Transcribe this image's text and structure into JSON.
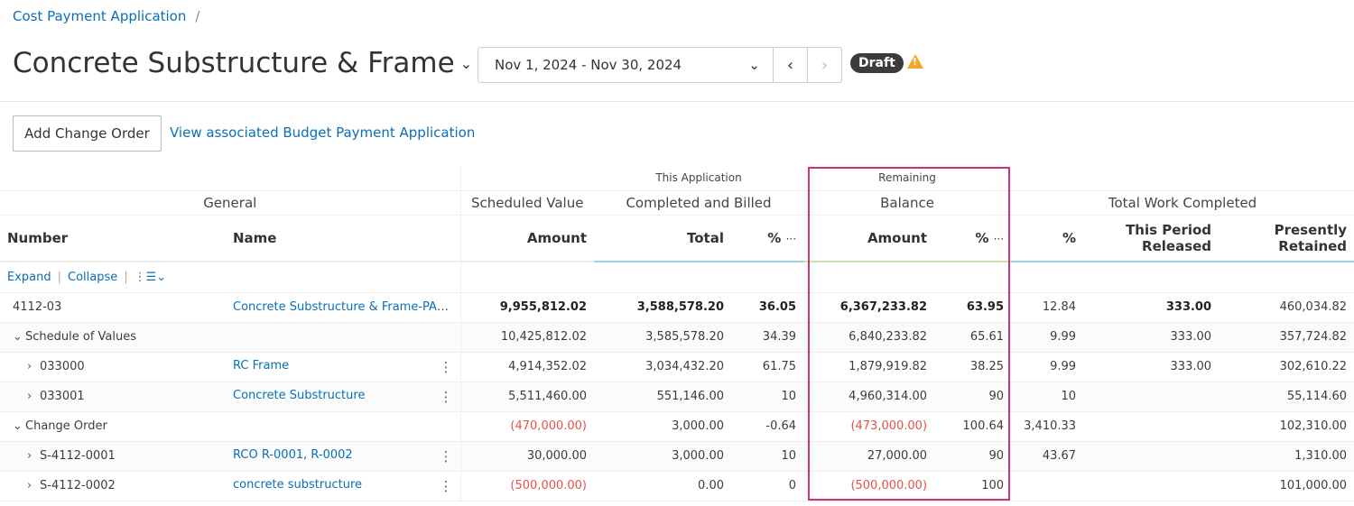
{
  "breadcrumb": {
    "parent": "Cost Payment Application",
    "separator": "/"
  },
  "header": {
    "title": "Concrete Substructure & Frame",
    "date_range": "Nov 1, 2024 - Nov 30, 2024",
    "status": "Draft",
    "warning_icon": "warning-triangle-icon"
  },
  "actions": {
    "add_change_order": "Add Change Order",
    "view_budget_link": "View associated Budget Payment Application"
  },
  "table": {
    "super_headers": {
      "this_application": "This Application",
      "remaining": "Remaining"
    },
    "groups": {
      "general": "General",
      "scheduled_value": "Scheduled Value",
      "completed_billed": "Completed and Billed",
      "balance": "Balance",
      "total_work": "Total Work Completed"
    },
    "columns": {
      "number": "Number",
      "name": "Name",
      "sv_amount": "Amount",
      "cb_total": "Total",
      "cb_pct": "%",
      "bal_amount": "Amount",
      "bal_pct": "%",
      "tw_pct": "%",
      "this_period_released": "This Period Released",
      "presently_retained": "Presently Retained",
      "more": "···"
    },
    "controls": {
      "expand": "Expand",
      "collapse": "Collapse",
      "sort_icon": "list-order-icon"
    },
    "rows": [
      {
        "level": 0,
        "toggle": "",
        "number": "4112-03",
        "name": "Concrete Substructure & Frame-PA0...",
        "sv": "9,955,812.02",
        "cb_total": "3,588,578.20",
        "cb_pct": "36.05",
        "bal": "6,367,233.82",
        "bal_pct": "63.95",
        "tw_pct": "12.84",
        "released": "333.00",
        "retained": "460,034.82",
        "bold": true
      },
      {
        "level": 0,
        "toggle": "v",
        "number": "Schedule of Values",
        "name": "",
        "sv": "10,425,812.02",
        "cb_total": "3,585,578.20",
        "cb_pct": "34.39",
        "bal": "6,840,233.82",
        "bal_pct": "65.61",
        "tw_pct": "9.99",
        "released": "333.00",
        "retained": "357,724.82"
      },
      {
        "level": 1,
        "toggle": ">",
        "number": "033000",
        "name": "RC Frame",
        "sv": "4,914,352.02",
        "cb_total": "3,034,432.20",
        "cb_pct": "61.75",
        "bal": "1,879,919.82",
        "bal_pct": "38.25",
        "tw_pct": "9.99",
        "released": "333.00",
        "retained": "302,610.22"
      },
      {
        "level": 1,
        "toggle": ">",
        "number": "033001",
        "name": "Concrete Substructure",
        "sv": "5,511,460.00",
        "cb_total": "551,146.00",
        "cb_pct": "10",
        "bal": "4,960,314.00",
        "bal_pct": "90",
        "tw_pct": "10",
        "released": "",
        "retained": "55,114.60"
      },
      {
        "level": 0,
        "toggle": "v",
        "number": "Change Order",
        "name": "",
        "sv": "(470,000.00)",
        "cb_total": "3,000.00",
        "cb_pct": "-0.64",
        "bal": "(473,000.00)",
        "bal_pct": "100.64",
        "tw_pct": "3,410.33",
        "released": "",
        "retained": "102,310.00"
      },
      {
        "level": 1,
        "toggle": ">",
        "number": "S-4112-0001",
        "name": "RCO R-0001, R-0002",
        "sv": "30,000.00",
        "cb_total": "3,000.00",
        "cb_pct": "10",
        "bal": "27,000.00",
        "bal_pct": "90",
        "tw_pct": "43.67",
        "released": "",
        "retained": "1,310.00"
      },
      {
        "level": 1,
        "toggle": ">",
        "number": "S-4112-0002",
        "name": "concrete substructure",
        "sv": "(500,000.00)",
        "cb_total": "0.00",
        "cb_pct": "0",
        "bal": "(500,000.00)",
        "bal_pct": "100",
        "tw_pct": "",
        "released": "",
        "retained": "101,000.00"
      }
    ]
  },
  "colors": {
    "link": "#0a6fb5",
    "negative": "#e5534b",
    "highlight_border": "#d0307a",
    "badge": "#3c3c3c",
    "warning": "#f5a623"
  }
}
